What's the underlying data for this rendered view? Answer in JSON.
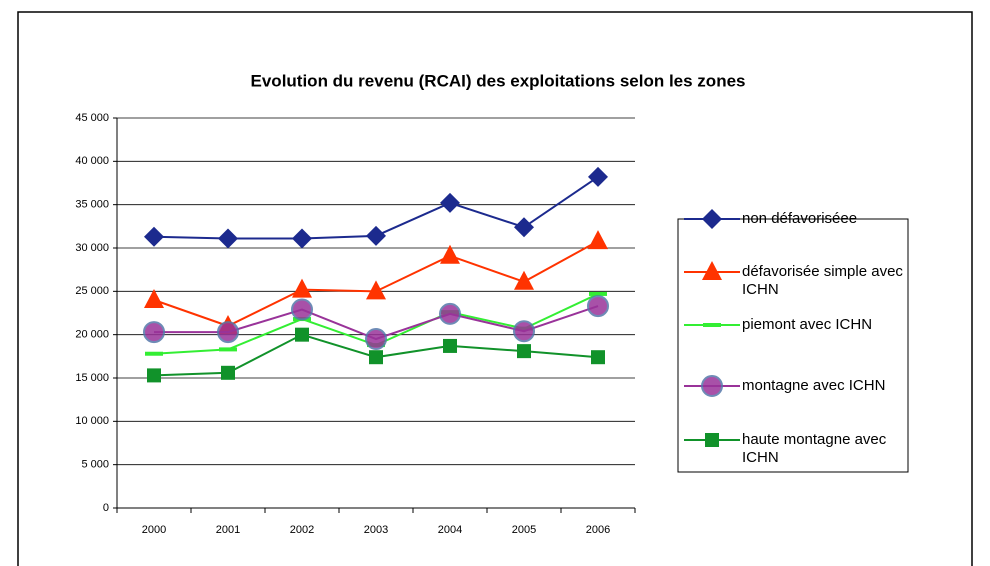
{
  "chart_data": {
    "type": "line",
    "title": "Evolution du revenu (RCAI) des exploitations selon les zones",
    "categories": [
      "2000",
      "2001",
      "2002",
      "2003",
      "2004",
      "2005",
      "2006"
    ],
    "series": [
      {
        "name": "non défavoriséee",
        "color": "#1c2a8e",
        "marker": "diamond",
        "values": [
          31300,
          31100,
          31100,
          31400,
          35200,
          32400,
          38200
        ]
      },
      {
        "name": "défavorisée simple avec ICHN",
        "color": "#ff3300",
        "marker": "triangle",
        "values": [
          24000,
          21000,
          25200,
          25000,
          29100,
          26100,
          30800
        ]
      },
      {
        "name": "piemont avec ICHN",
        "color": "#33ee33",
        "marker": "dash",
        "values": [
          17800,
          18300,
          21800,
          18800,
          22600,
          20700,
          24700
        ]
      },
      {
        "name": "montagne avec ICHN",
        "color": "#993399",
        "marker": "circle",
        "values": [
          20300,
          20300,
          22900,
          19500,
          22400,
          20400,
          23300
        ]
      },
      {
        "name": "haute montagne avec ICHN",
        "color": "#11922a",
        "marker": "square",
        "values": [
          15300,
          15600,
          20000,
          17400,
          18700,
          18100,
          17400
        ]
      }
    ],
    "ylim": [
      0,
      45000
    ],
    "yticks": [
      0,
      {
        "value": 5000,
        "label": "5 000"
      },
      {
        "value": 10000,
        "label": "10 000"
      },
      {
        "value": 15000,
        "label": "15 000"
      },
      {
        "value": 20000,
        "label": "20 000"
      },
      {
        "value": 25000,
        "label": "25 000"
      },
      {
        "value": 30000,
        "label": "30 000"
      },
      {
        "value": 35000,
        "label": "35 000"
      },
      {
        "value": 40000,
        "label": "40 000"
      },
      {
        "value": 45000,
        "label": "45 000"
      }
    ],
    "grid": true
  }
}
